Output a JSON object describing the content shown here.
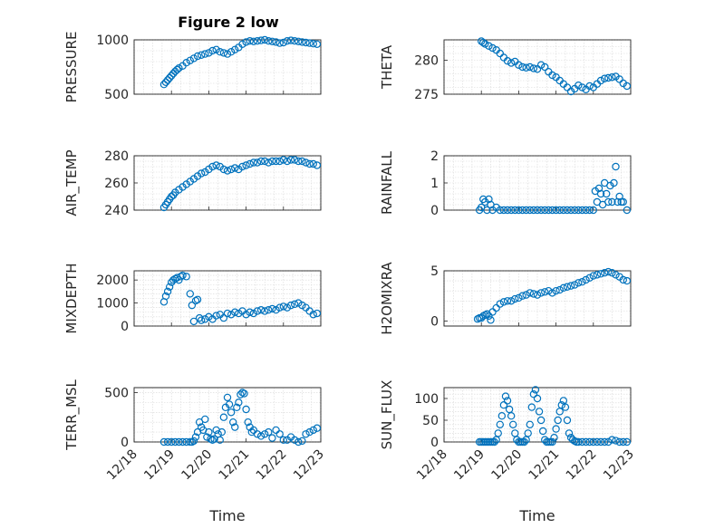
{
  "figure_title": "Figure 2 low",
  "marker_color": "#0072bd",
  "x_tick_labels": [
    "12/18",
    "12/19",
    "12/20",
    "12/21",
    "12/22",
    "12/23"
  ],
  "chart_data": [
    {
      "type": "scatter",
      "ylabel": "PRESSURE",
      "xlabel": "",
      "xlim": [
        18,
        23
      ],
      "ylim": [
        500,
        1000
      ],
      "yticks": [
        500,
        1000
      ],
      "x": [
        18.8,
        18.85,
        18.9,
        18.95,
        19.0,
        19.05,
        19.1,
        19.15,
        19.2,
        19.3,
        19.4,
        19.5,
        19.6,
        19.7,
        19.8,
        19.9,
        20.0,
        20.1,
        20.2,
        20.3,
        20.4,
        20.5,
        20.6,
        20.7,
        20.8,
        20.9,
        21.0,
        21.1,
        21.2,
        21.3,
        21.4,
        21.5,
        21.6,
        21.7,
        21.8,
        21.9,
        22.0,
        22.1,
        22.2,
        22.3,
        22.4,
        22.5,
        22.6,
        22.7,
        22.8,
        22.9
      ],
      "y": [
        590,
        610,
        630,
        650,
        670,
        690,
        710,
        725,
        740,
        760,
        790,
        810,
        830,
        850,
        860,
        870,
        880,
        900,
        910,
        890,
        880,
        870,
        890,
        910,
        930,
        960,
        980,
        990,
        985,
        990,
        995,
        1000,
        990,
        985,
        980,
        970,
        975,
        990,
        995,
        990,
        985,
        980,
        975,
        970,
        965,
        960
      ]
    },
    {
      "type": "scatter",
      "ylabel": "THETA",
      "xlabel": "",
      "xlim": [
        18,
        23
      ],
      "ylim": [
        275,
        283
      ],
      "yticks": [
        275,
        280
      ],
      "x": [
        19.0,
        19.05,
        19.1,
        19.2,
        19.3,
        19.4,
        19.5,
        19.6,
        19.7,
        19.8,
        19.9,
        20.0,
        20.1,
        20.2,
        20.3,
        20.4,
        20.5,
        20.6,
        20.7,
        20.8,
        20.9,
        21.0,
        21.1,
        21.2,
        21.3,
        21.4,
        21.5,
        21.6,
        21.7,
        21.8,
        21.9,
        22.0,
        22.1,
        22.2,
        22.3,
        22.4,
        22.5,
        22.6,
        22.7,
        22.8,
        22.9
      ],
      "y": [
        282.8,
        282.6,
        282.4,
        282.1,
        281.8,
        281.5,
        281.0,
        280.4,
        279.9,
        279.6,
        279.8,
        279.3,
        279.0,
        278.9,
        279.0,
        278.8,
        278.7,
        279.3,
        279.0,
        278.3,
        277.8,
        277.5,
        277.0,
        276.5,
        276.0,
        275.4,
        275.8,
        276.3,
        276.0,
        275.7,
        276.2,
        276.0,
        276.5,
        277.0,
        277.3,
        277.4,
        277.5,
        277.6,
        277.2,
        276.6,
        276.2
      ]
    },
    {
      "type": "scatter",
      "ylabel": "AIR_TEMP",
      "xlabel": "",
      "xlim": [
        18,
        23
      ],
      "ylim": [
        240,
        280
      ],
      "yticks": [
        240,
        260,
        280
      ],
      "x": [
        18.8,
        18.85,
        18.9,
        18.95,
        19.0,
        19.05,
        19.1,
        19.2,
        19.3,
        19.4,
        19.5,
        19.6,
        19.7,
        19.8,
        19.9,
        20.0,
        20.1,
        20.2,
        20.3,
        20.4,
        20.5,
        20.6,
        20.7,
        20.8,
        20.9,
        21.0,
        21.1,
        21.2,
        21.3,
        21.4,
        21.5,
        21.6,
        21.7,
        21.8,
        21.9,
        22.0,
        22.1,
        22.2,
        22.3,
        22.4,
        22.5,
        22.6,
        22.7,
        22.8,
        22.9
      ],
      "y": [
        242,
        244,
        246,
        248,
        250,
        251,
        253,
        255,
        257,
        259,
        261,
        263,
        265,
        267,
        268,
        270,
        272,
        273,
        272,
        270,
        269,
        270,
        271,
        270,
        272,
        273,
        274,
        275,
        275,
        276,
        276,
        275,
        276,
        276,
        276,
        277,
        276,
        277,
        277,
        276,
        276,
        275,
        274,
        274,
        273
      ]
    },
    {
      "type": "scatter",
      "ylabel": "RAINFALL",
      "xlabel": "",
      "xlim": [
        18,
        23
      ],
      "ylim": [
        0,
        2
      ],
      "yticks": [
        0,
        1,
        2
      ],
      "x": [
        18.95,
        19.0,
        19.05,
        19.1,
        19.15,
        19.2,
        19.25,
        19.3,
        19.4,
        19.5,
        19.6,
        19.7,
        19.8,
        19.9,
        20.0,
        20.1,
        20.2,
        20.3,
        20.4,
        20.5,
        20.6,
        20.7,
        20.8,
        20.9,
        21.0,
        21.1,
        21.2,
        21.3,
        21.4,
        21.5,
        21.6,
        21.7,
        21.8,
        21.9,
        22.0,
        22.05,
        22.1,
        22.15,
        22.2,
        22.25,
        22.3,
        22.35,
        22.4,
        22.45,
        22.5,
        22.55,
        22.6,
        22.65,
        22.7,
        22.75,
        22.8,
        22.9
      ],
      "y": [
        0,
        0.1,
        0.4,
        0.3,
        0,
        0.4,
        0.2,
        0,
        0.1,
        0,
        0,
        0,
        0,
        0,
        0,
        0,
        0,
        0,
        0,
        0,
        0,
        0,
        0,
        0,
        0,
        0,
        0,
        0,
        0,
        0,
        0,
        0,
        0,
        0,
        0,
        0.7,
        0.3,
        0.8,
        0.6,
        0.2,
        1.0,
        0.6,
        0.3,
        0.9,
        0.3,
        1.0,
        1.6,
        0.3,
        0.5,
        0.3,
        0.3,
        0
      ]
    },
    {
      "type": "scatter",
      "ylabel": "MIXDEPTH",
      "xlabel": "",
      "xlim": [
        18,
        23
      ],
      "ylim": [
        0,
        2400
      ],
      "yticks": [
        0,
        1000,
        2000
      ],
      "x": [
        18.8,
        18.85,
        18.9,
        18.95,
        19.0,
        19.05,
        19.1,
        19.15,
        19.2,
        19.25,
        19.3,
        19.4,
        19.5,
        19.55,
        19.6,
        19.65,
        19.7,
        19.75,
        19.8,
        19.9,
        20.0,
        20.1,
        20.2,
        20.3,
        20.4,
        20.5,
        20.6,
        20.7,
        20.8,
        20.9,
        21.0,
        21.1,
        21.2,
        21.3,
        21.4,
        21.5,
        21.6,
        21.7,
        21.8,
        21.9,
        22.0,
        22.1,
        22.2,
        22.3,
        22.4,
        22.5,
        22.6,
        22.7,
        22.8,
        22.9
      ],
      "y": [
        1050,
        1300,
        1500,
        1700,
        1900,
        2000,
        2050,
        2100,
        2000,
        2150,
        2200,
        2150,
        1400,
        900,
        200,
        1100,
        1150,
        350,
        250,
        300,
        400,
        300,
        450,
        500,
        350,
        550,
        500,
        600,
        550,
        650,
        500,
        600,
        550,
        650,
        700,
        650,
        700,
        750,
        700,
        800,
        850,
        800,
        900,
        950,
        1000,
        900,
        800,
        650,
        500,
        550
      ]
    },
    {
      "type": "scatter",
      "ylabel": "H2OMIXRA",
      "xlabel": "",
      "xlim": [
        18,
        23
      ],
      "ylim": [
        -0.5,
        5
      ],
      "yticks": [
        0,
        5
      ],
      "x": [
        18.9,
        18.95,
        19.0,
        19.05,
        19.1,
        19.15,
        19.2,
        19.25,
        19.3,
        19.4,
        19.5,
        19.6,
        19.7,
        19.8,
        19.9,
        20.0,
        20.1,
        20.2,
        20.3,
        20.4,
        20.5,
        20.6,
        20.7,
        20.8,
        20.9,
        21.0,
        21.1,
        21.2,
        21.3,
        21.4,
        21.5,
        21.6,
        21.7,
        21.8,
        21.9,
        22.0,
        22.1,
        22.2,
        22.3,
        22.4,
        22.5,
        22.6,
        22.7,
        22.8,
        22.9
      ],
      "y": [
        0.2,
        0.3,
        0.3,
        0.5,
        0.6,
        0.7,
        0.5,
        0.1,
        0.9,
        1.3,
        1.7,
        1.9,
        2.0,
        2.0,
        2.2,
        2.3,
        2.5,
        2.6,
        2.8,
        2.7,
        2.6,
        2.8,
        2.9,
        3.0,
        2.8,
        3.0,
        3.1,
        3.3,
        3.4,
        3.5,
        3.6,
        3.8,
        3.9,
        4.1,
        4.3,
        4.5,
        4.6,
        4.7,
        4.8,
        4.9,
        4.8,
        4.6,
        4.4,
        4.1,
        4.0
      ]
    },
    {
      "type": "scatter",
      "ylabel": "TERR_MSL",
      "xlabel": "Time",
      "xlim": [
        18,
        23
      ],
      "ylim": [
        0,
        550
      ],
      "yticks": [
        0,
        500
      ],
      "x": [
        18.8,
        18.9,
        19.0,
        19.1,
        19.2,
        19.3,
        19.4,
        19.5,
        19.55,
        19.6,
        19.65,
        19.7,
        19.75,
        19.8,
        19.85,
        19.9,
        19.95,
        20.0,
        20.05,
        20.1,
        20.15,
        20.2,
        20.25,
        20.3,
        20.35,
        20.4,
        20.45,
        20.5,
        20.55,
        20.6,
        20.65,
        20.7,
        20.75,
        20.8,
        20.85,
        20.9,
        20.95,
        21.0,
        21.05,
        21.1,
        21.15,
        21.2,
        21.3,
        21.4,
        21.5,
        21.6,
        21.7,
        21.8,
        21.9,
        22.0,
        22.1,
        22.2,
        22.3,
        22.4,
        22.5,
        22.6,
        22.7,
        22.8,
        22.9
      ],
      "y": [
        0,
        0,
        0,
        0,
        0,
        0,
        0,
        0,
        0,
        10,
        50,
        100,
        200,
        150,
        120,
        230,
        50,
        100,
        30,
        20,
        30,
        120,
        80,
        20,
        100,
        250,
        350,
        450,
        380,
        300,
        200,
        150,
        350,
        400,
        480,
        500,
        490,
        330,
        200,
        150,
        100,
        120,
        80,
        60,
        80,
        100,
        40,
        120,
        80,
        20,
        20,
        50,
        20,
        0,
        10,
        80,
        100,
        120,
        140
      ]
    },
    {
      "type": "scatter",
      "ylabel": "SUN_FLUX",
      "xlabel": "Time",
      "xlim": [
        18,
        23
      ],
      "ylim": [
        0,
        125
      ],
      "yticks": [
        0,
        50,
        100
      ],
      "x": [
        18.95,
        19.0,
        19.05,
        19.1,
        19.15,
        19.2,
        19.25,
        19.3,
        19.35,
        19.4,
        19.45,
        19.5,
        19.55,
        19.6,
        19.65,
        19.7,
        19.75,
        19.8,
        19.85,
        19.9,
        19.95,
        20.0,
        20.05,
        20.1,
        20.15,
        20.2,
        20.25,
        20.3,
        20.35,
        20.4,
        20.45,
        20.5,
        20.55,
        20.6,
        20.65,
        20.7,
        20.75,
        20.8,
        20.85,
        20.9,
        20.95,
        21.0,
        21.05,
        21.1,
        21.15,
        21.2,
        21.25,
        21.3,
        21.35,
        21.4,
        21.45,
        21.5,
        21.55,
        21.6,
        21.7,
        21.8,
        21.9,
        22.0,
        22.1,
        22.2,
        22.3,
        22.4,
        22.5,
        22.6,
        22.7,
        22.8,
        22.9
      ],
      "y": [
        0,
        0,
        0,
        0,
        0,
        0,
        0,
        0,
        0,
        5,
        20,
        40,
        60,
        85,
        105,
        95,
        75,
        60,
        40,
        20,
        5,
        0,
        0,
        0,
        0,
        5,
        20,
        40,
        80,
        110,
        120,
        100,
        70,
        50,
        25,
        5,
        0,
        0,
        0,
        0,
        10,
        30,
        50,
        70,
        85,
        95,
        80,
        50,
        20,
        10,
        5,
        2,
        0,
        0,
        0,
        0,
        0,
        0,
        0,
        0,
        0,
        0,
        5,
        3,
        0,
        0,
        0
      ]
    }
  ]
}
